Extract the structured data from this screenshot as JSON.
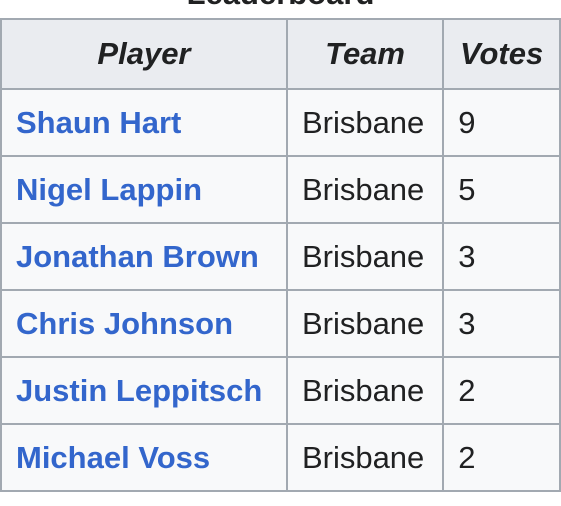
{
  "caption": "Leaderboard",
  "headers": {
    "player": "Player",
    "team": "Team",
    "votes": "Votes"
  },
  "rows": [
    {
      "player": "Shaun Hart",
      "team": "Brisbane",
      "votes": "9"
    },
    {
      "player": "Nigel Lappin",
      "team": "Brisbane",
      "votes": "5"
    },
    {
      "player": "Jonathan Brown",
      "team": "Brisbane",
      "votes": "3"
    },
    {
      "player": "Chris Johnson",
      "team": "Brisbane",
      "votes": "3"
    },
    {
      "player": "Justin Leppitsch",
      "team": "Brisbane",
      "votes": "2"
    },
    {
      "player": "Michael Voss",
      "team": "Brisbane",
      "votes": "2"
    }
  ],
  "colors": {
    "link": "#3366cc",
    "text": "#202122",
    "header_bg": "#eaecf0",
    "cell_bg": "#f8f9fa",
    "border": "#a2a9b1"
  }
}
